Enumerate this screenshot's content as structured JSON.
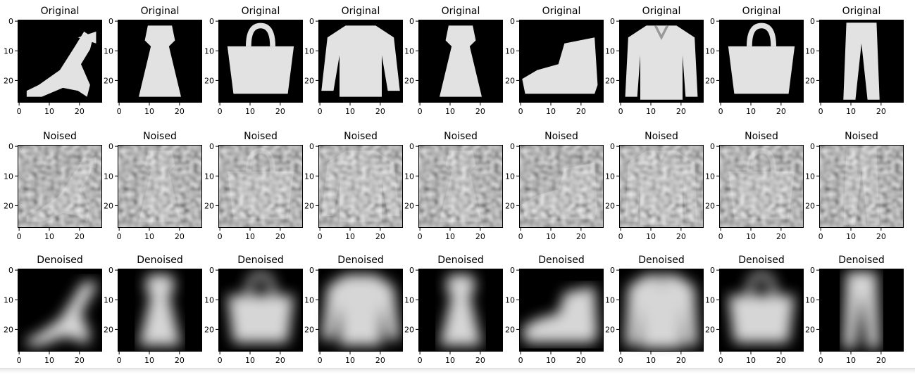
{
  "figure": {
    "rows": [
      {
        "title": "Original",
        "kind": "clean"
      },
      {
        "title": "Noised",
        "kind": "noise"
      },
      {
        "title": "Denoised",
        "kind": "smooth"
      }
    ],
    "columns": [
      {
        "item": "sandal-icon"
      },
      {
        "item": "dress-icon"
      },
      {
        "item": "bag-icon"
      },
      {
        "item": "pullover-icon"
      },
      {
        "item": "dress-icon"
      },
      {
        "item": "ankle-boot-icon"
      },
      {
        "item": "shirt-icon"
      },
      {
        "item": "bag-icon"
      },
      {
        "item": "trouser-icon"
      }
    ],
    "x_ticks": [
      "0",
      "10",
      "20"
    ],
    "y_ticks": [
      "0",
      "10",
      "20"
    ],
    "colors": {
      "background": "#000000",
      "garment": "#e2e2e2",
      "axis": "#000000"
    }
  }
}
